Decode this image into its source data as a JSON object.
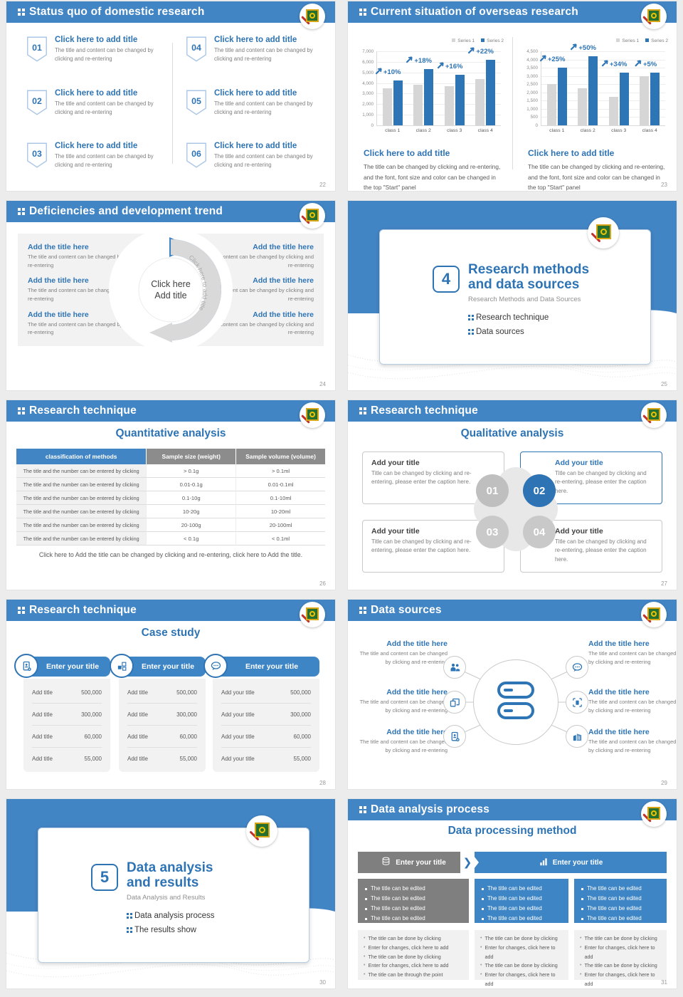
{
  "colors": {
    "band_blue": "#4285C4",
    "accent_blue": "#2E74B5",
    "bar_blue": "#2E75B6",
    "bar_gray": "#D6D6D6",
    "gray_box": "#7F7F7F",
    "process_blue": "#3D85C5",
    "panel_gray": "#F2F2F2"
  },
  "slides": [
    {
      "title": "Status quo of domestic research",
      "page": "22",
      "items": [
        {
          "num": "01",
          "title": "Click here to add title",
          "body": "The title and content can be changed by clicking and re-entering"
        },
        {
          "num": "02",
          "title": "Click here to add title",
          "body": "The title and content can be changed by clicking and re-entering"
        },
        {
          "num": "03",
          "title": "Click here to add title",
          "body": "The title and content can be changed by clicking and re-entering"
        },
        {
          "num": "04",
          "title": "Click here to add title",
          "body": "The title and content can be changed by clicking and re-entering"
        },
        {
          "num": "05",
          "title": "Click here to add title",
          "body": "The title and content can be changed by clicking and re-entering"
        },
        {
          "num": "06",
          "title": "Click here to add title",
          "body": "The title and content can be changed by clicking and re-entering"
        }
      ]
    },
    {
      "title": "Current situation of overseas research",
      "page": "23",
      "caption_title": "Click here to add title",
      "caption_body": "The title can be changed by clicking and re-entering, and the font, font size and color can be changed in the top \"Start\" panel"
    },
    {
      "title": "Deficiencies and development trend",
      "page": "24",
      "center_line1": "Click here",
      "center_line2": "Add title",
      "arrow_text": "Click here to add title",
      "items_left": [
        {
          "title": "Add the title here",
          "body": "The title and content can be changed by clicking and re-entering"
        },
        {
          "title": "Add the title here",
          "body": "The title and content can be changed by clicking and re-entering"
        },
        {
          "title": "Add the title here",
          "body": "The title and content can be changed by clicking and re-entering"
        }
      ],
      "items_right": [
        {
          "title": "Add the title here",
          "body": "The title and content can be changed by clicking and re-entering"
        },
        {
          "title": "Add the title here",
          "body": "The title and content can be changed by clicking and re-entering"
        },
        {
          "title": "Add the title here",
          "body": "The title and content can be changed by clicking and re-entering"
        }
      ]
    },
    {
      "num": "4",
      "title1": "Research methods",
      "title2": "and data sources",
      "subtitle": "Research Methods and Data Sources",
      "bullets": [
        "Research technique",
        "Data sources"
      ],
      "page": "25"
    },
    {
      "title": "Research technique",
      "subtitle": "Quantitative analysis",
      "page": "26",
      "headers": [
        "classification of methods",
        "Sample size (weight)",
        "Sample volume (volume)"
      ],
      "row_label": "The title and the number can be entered by clicking",
      "rows": [
        [
          "> 0.1g",
          "> 0.1ml"
        ],
        [
          "0.01-0.1g",
          "0.01-0.1ml"
        ],
        [
          "0.1-10g",
          "0.1-10ml"
        ],
        [
          "10-20g",
          "10-20ml"
        ],
        [
          "20-100g",
          "20-100ml"
        ],
        [
          "< 0.1g",
          "< 0.1ml"
        ]
      ],
      "footer": "Click here to Add the title can be changed by clicking and re-entering, click here to Add the title."
    },
    {
      "title": "Research technique",
      "subtitle": "Qualitative analysis",
      "page": "27",
      "highlight": "02",
      "cards": [
        {
          "num": "01",
          "title": "Add your title",
          "body": "Title can be changed by clicking and re-entering, please enter the caption here."
        },
        {
          "num": "02",
          "title": "Add your title",
          "body": "Title can be changed by clicking and re-entering, please enter the caption here."
        },
        {
          "num": "03",
          "title": "Add your title",
          "body": "Title can be changed by clicking and re-entering, please enter the caption here."
        },
        {
          "num": "04",
          "title": "Add your title",
          "body": "Title can be changed by clicking and re-entering, please enter the caption here."
        }
      ]
    },
    {
      "title": "Research technique",
      "subtitle": "Case study",
      "page": "28",
      "columns": [
        {
          "icon": "device-card-icon",
          "header": "Enter your title",
          "rows": [
            {
              "label": "Add title",
              "value": "500,000"
            },
            {
              "label": "Add title",
              "value": "300,000"
            },
            {
              "label": "Add title",
              "value": "60,000"
            },
            {
              "label": "Add title",
              "value": "55,000"
            }
          ]
        },
        {
          "icon": "cubes-icon",
          "header": "Enter your title",
          "rows": [
            {
              "label": "Add title",
              "value": "500,000"
            },
            {
              "label": "Add title",
              "value": "300,000"
            },
            {
              "label": "Add title",
              "value": "60,000"
            },
            {
              "label": "Add title",
              "value": "55,000"
            }
          ]
        },
        {
          "icon": "chat-icon",
          "header": "Enter your title",
          "rows": [
            {
              "label": "Add your title",
              "value": "500,000"
            },
            {
              "label": "Add your title",
              "value": "300,000"
            },
            {
              "label": "Add your title",
              "value": "60,000"
            },
            {
              "label": "Add your title",
              "value": "55,000"
            }
          ]
        }
      ]
    },
    {
      "title": "Data sources",
      "page": "29",
      "center_icon": "server-icon",
      "items": [
        {
          "side": "left",
          "icon": "people-icon",
          "title": "Add the title here",
          "body": "The title and content can be changed by clicking and re-entering"
        },
        {
          "side": "left",
          "icon": "books-icon",
          "title": "Add the title here",
          "body": "The title and content can be changed by clicking and re-entering"
        },
        {
          "side": "left",
          "icon": "tablet-add-icon",
          "title": "Add the title here",
          "body": "The title and content can be changed by clicking and re-entering"
        },
        {
          "side": "right",
          "icon": "chat-icon",
          "title": "Add the title here",
          "body": "The title and content can be changed by clicking and re-entering"
        },
        {
          "side": "right",
          "icon": "scan-icon",
          "title": "Add the title here",
          "body": "The title and content can be changed by clicking and re-entering"
        },
        {
          "side": "right",
          "icon": "building-icon",
          "title": "Add the title here",
          "body": "The title and content can be changed by clicking and re-entering"
        }
      ]
    },
    {
      "num": "5",
      "title1": "Data analysis",
      "title2": "and results",
      "subtitle": "Data Analysis and Results",
      "bullets": [
        "Data analysis process",
        "The results show"
      ],
      "page": "30"
    },
    {
      "title": "Data analysis process",
      "subtitle": "Data processing method",
      "page": "31",
      "headers": [
        {
          "icon": "database-icon",
          "label": "Enter your title"
        },
        {
          "icon": "bar-chart-icon",
          "label": "Enter your title"
        }
      ],
      "edited": [
        [
          "The title can be edited",
          "The title can be edited",
          "The title can be edited",
          "The title can be edited"
        ],
        [
          "The title can be edited",
          "The title can be edited",
          "The title can be edited",
          "The title can be edited"
        ],
        [
          "The title can be edited",
          "The title can be edited",
          "The title can be edited",
          "The title can be edited"
        ]
      ],
      "notes": [
        [
          "The title can be done by clicking",
          "Enter for changes, click here to add",
          "The title can be done by clicking",
          "Enter for changes, click here to add",
          "The title can be through the point"
        ],
        [
          "The title can be done by clicking",
          "Enter for changes, click here to add",
          "The title can be done by clicking",
          "Enter for changes, click here to add",
          "The title can be done by clicking"
        ],
        [
          "The title can be done by clicking",
          "Enter for changes, click here to add",
          "The title can be done by clicking",
          "Enter for changes, click here to add",
          "The title can be done by clicking"
        ]
      ]
    }
  ],
  "chart_data": [
    {
      "type": "bar",
      "title": "",
      "xlabel": "",
      "ylabel": "",
      "categories": [
        "class 1",
        "class 2",
        "class 3",
        "class 4"
      ],
      "series": [
        {
          "name": "Series 1",
          "color": "#D6D6D6",
          "values": [
            3500,
            3850,
            3700,
            4350
          ]
        },
        {
          "name": "Series 2",
          "color": "#2E75B6",
          "values": [
            4250,
            5300,
            4800,
            6200
          ]
        }
      ],
      "labels": [
        "+10%",
        "+18%",
        "+16%",
        "+22%"
      ],
      "ylim": [
        0,
        7000
      ],
      "ytick": 1000,
      "grid": true,
      "legend_position": "top-right"
    },
    {
      "type": "bar",
      "title": "",
      "xlabel": "",
      "ylabel": "",
      "categories": [
        "class 1",
        "class 2",
        "class 3",
        "class 4"
      ],
      "series": [
        {
          "name": "Series 1",
          "color": "#D6D6D6",
          "values": [
            2500,
            2250,
            1750,
            3000
          ]
        },
        {
          "name": "Series 2",
          "color": "#2E75B6",
          "values": [
            3500,
            4200,
            3200,
            3200
          ]
        }
      ],
      "labels": [
        "+25%",
        "+50%",
        "+34%",
        "+5%"
      ],
      "ylim": [
        0,
        4500
      ],
      "ytick": 500,
      "grid": true,
      "legend_position": "top-right"
    }
  ]
}
